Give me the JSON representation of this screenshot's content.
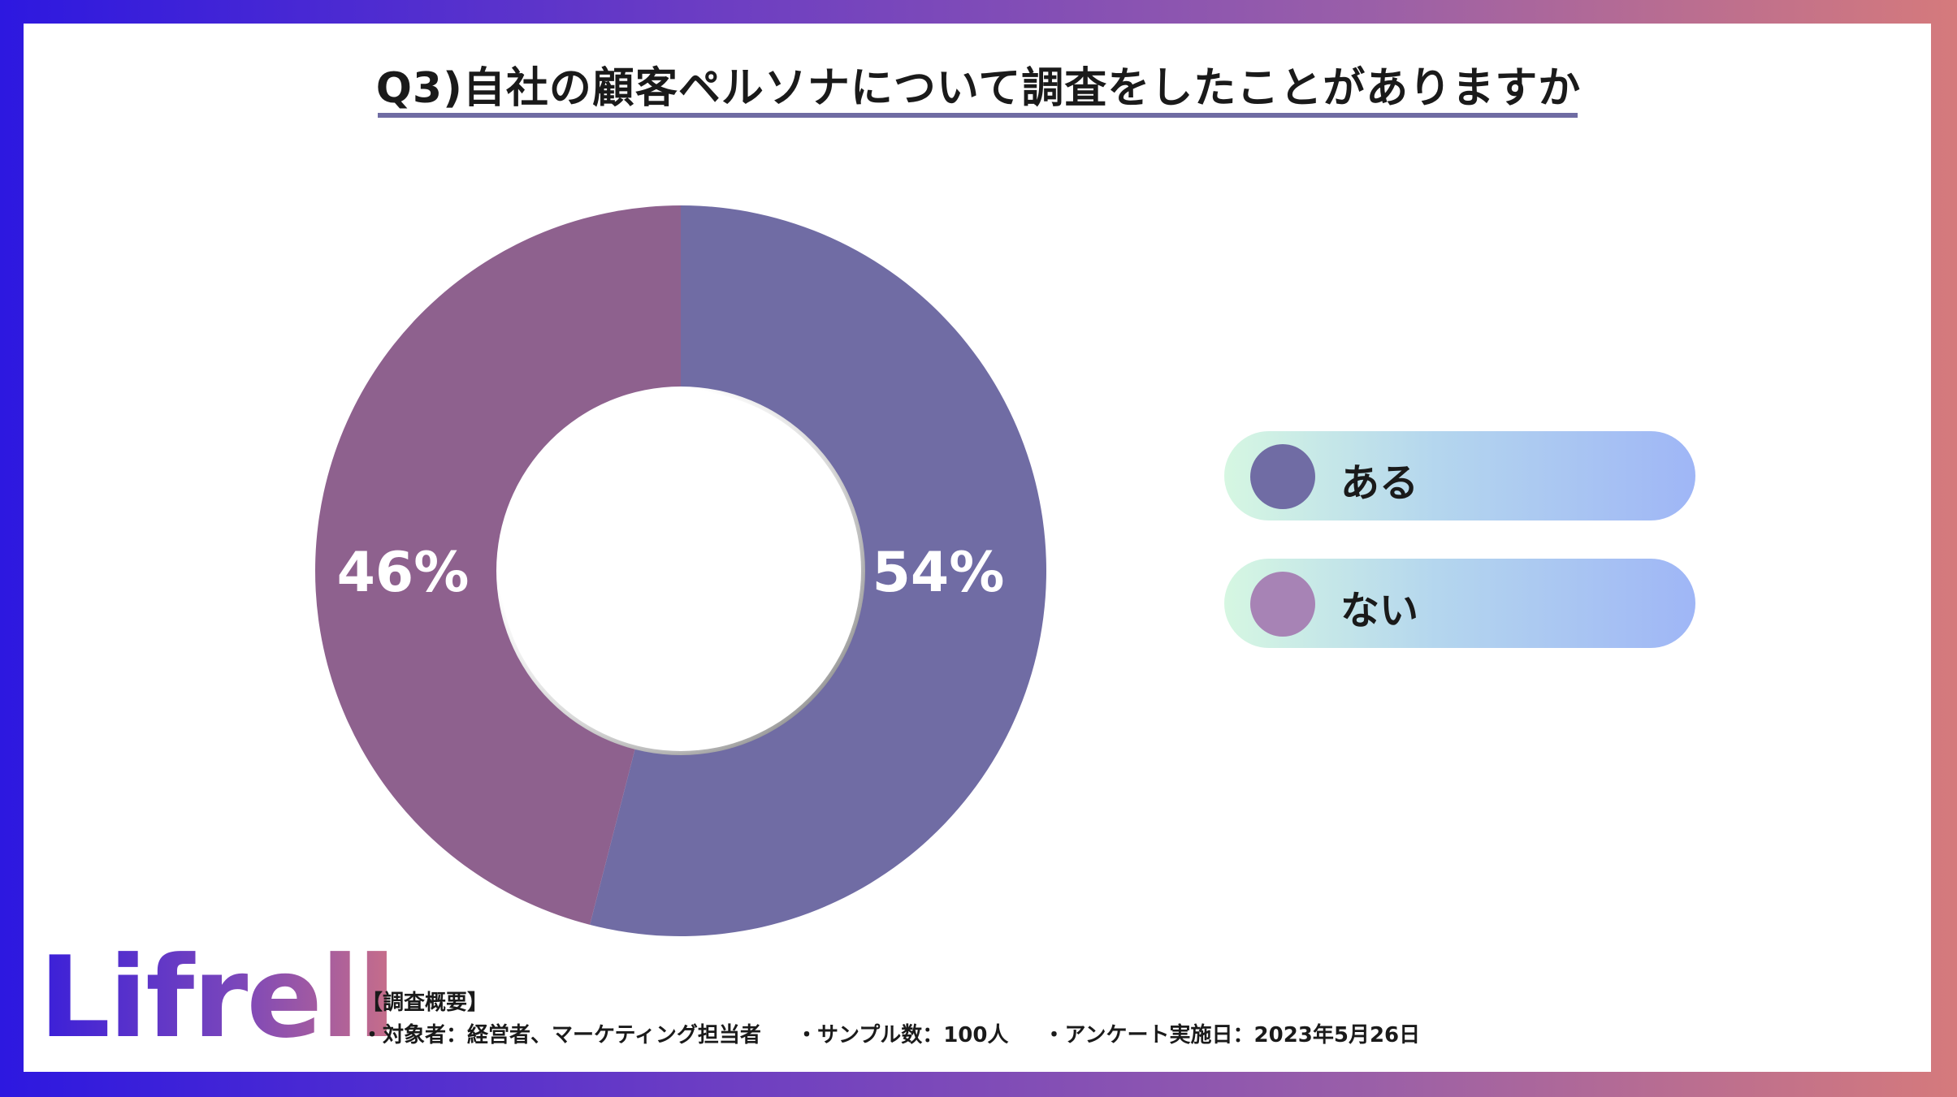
{
  "title": "Q3)自社の顧客ペルソナについて調査をしたことがありますか",
  "chart_data": {
    "type": "pie",
    "categories": [
      "ある",
      "ない"
    ],
    "values": [
      54,
      46
    ],
    "data_labels": [
      "54%",
      "46%"
    ],
    "colors": [
      "#706ca4",
      "#8e618e"
    ]
  },
  "legend": [
    {
      "label": "ある",
      "color": "#706ca4"
    },
    {
      "label": "ない",
      "color": "#a783b5"
    }
  ],
  "logo_text": "Lifrell",
  "survey": {
    "heading": "【調査概要】",
    "items": [
      "・対象者：経営者、マーケティング担当者",
      "・サンプル数：100人",
      "・アンケート実施日：2023年5月26日"
    ]
  }
}
